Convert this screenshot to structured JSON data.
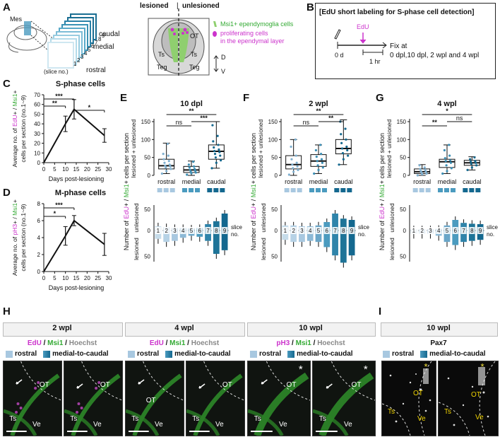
{
  "panels": {
    "A": "A",
    "B": "B",
    "C": "C",
    "D": "D",
    "E": "E",
    "F": "F",
    "G": "G",
    "H": "H",
    "I": "I"
  },
  "panel_a": {
    "mes": "Mes",
    "caudal": "caudal",
    "medial": "medial",
    "rostral": "rostral",
    "slice_no": "(slice no.)",
    "slice_numbers": [
      "1",
      "2",
      "3",
      "4",
      "5",
      "6",
      "7",
      "8",
      "9"
    ],
    "lesioned": "lesioned",
    "unlesioned": "unlesioned",
    "ot": "OT",
    "ts": "Ts",
    "teg": "Teg",
    "legend_msi1": "Msi1+ ependymoglia cells",
    "legend_prolif_1": "proliferating cells",
    "legend_prolif_2": "in the ependymal layer",
    "d": "D",
    "v": "V"
  },
  "panel_b": {
    "title": "[EdU short labeling for S-phase cell detection]",
    "edu": "EdU",
    "fix_1": "Fix at",
    "fix_2": "0 dpl,10 dpl, 2 wpl and 4 wpl",
    "zero_d": "0 d",
    "one_hr": "1 hr"
  },
  "colors": {
    "magenta": "#cc33cc",
    "green": "#33aa33",
    "light_blue": "#a8c8e0",
    "mid_blue": "#4b9bbf",
    "dark_blue": "#14688f"
  },
  "line_plots": {
    "ylabel_1": "Average no. of ",
    "ylabel_2": "cells per section (no.1~9)",
    "slash": " / ",
    "plus": "+",
    "msi1": "Msi1",
    "edu": "EdU",
    "ph3": "pH3",
    "xlabel": "Days post-lesioning"
  },
  "box_plots": {
    "ylabel_a": "Number of ",
    "ylabel_b": " cells per section",
    "edu": "EdU",
    "msi1": "Msi1",
    "plus": "+",
    "slash": " / ",
    "sub_top": "lesioned + unlesioned",
    "sub_lesioned": "lesioned",
    "sub_unlesioned": "unlesioned",
    "slice_no": "slice no."
  },
  "chart_data": [
    {
      "id": "C",
      "type": "line",
      "title": "S-phase cells",
      "xlabel": "Days post-lesioning",
      "ylabel": "Average no. of EdU+ / Msi1+ cells per section (no.1~9)",
      "x": [
        0,
        10,
        14,
        28
      ],
      "y": [
        0,
        40,
        55,
        28
      ],
      "yerr": [
        0,
        8,
        10,
        7
      ],
      "xlim": [
        0,
        30
      ],
      "ylim": [
        0,
        70
      ],
      "xticks": [
        "0",
        "5",
        "10",
        "15",
        "20",
        "25",
        "30"
      ],
      "yticks": [
        "0",
        "10",
        "20",
        "30",
        "40",
        "50",
        "60",
        "70"
      ],
      "significance": [
        "***",
        "**",
        "*"
      ]
    },
    {
      "id": "D",
      "type": "line",
      "title": "M-phase cells",
      "xlabel": "Days post-lesioning",
      "ylabel": "Average no. of pH3+ / Msi1+ cells per section (no.1~9)",
      "x": [
        0,
        10,
        14,
        28
      ],
      "y": [
        0,
        4.2,
        6,
        3.2
      ],
      "yerr": [
        0,
        1.1,
        0.6,
        1.3
      ],
      "xlim": [
        0,
        30
      ],
      "ylim": [
        0,
        8
      ],
      "xticks": [
        "0",
        "5",
        "10",
        "15",
        "20",
        "25",
        "30"
      ],
      "yticks": [
        "0",
        "2",
        "4",
        "6",
        "8"
      ],
      "significance": [
        "***",
        "*"
      ]
    },
    {
      "id": "E",
      "type": "box",
      "title": "10 dpl",
      "categories": [
        "rostral",
        "medial",
        "caudal"
      ],
      "ylim": [
        0,
        150
      ],
      "yticks": [
        "0",
        "50",
        "100",
        "150"
      ],
      "boxes": [
        {
          "min": 5,
          "q1": 18,
          "median": 27,
          "q3": 45,
          "max": 90
        },
        {
          "min": 0,
          "q1": 8,
          "median": 15,
          "q3": 25,
          "max": 40
        },
        {
          "min": 20,
          "q1": 45,
          "median": 67,
          "q3": 85,
          "max": 150
        }
      ],
      "points": [
        [
          5,
          12,
          18,
          22,
          25,
          27,
          30,
          35,
          40,
          45,
          55,
          60,
          88
        ],
        [
          2,
          6,
          8,
          10,
          13,
          15,
          18,
          22,
          25,
          30,
          38
        ],
        [
          20,
          35,
          42,
          50,
          55,
          60,
          65,
          68,
          72,
          78,
          85,
          95,
          110,
          140
        ]
      ],
      "significance": [
        "**",
        "ns",
        "***"
      ],
      "bar": {
        "slices": [
          "1",
          "2",
          "3",
          "4",
          "5",
          "6",
          "7",
          "8",
          "9"
        ],
        "unlesioned": [
          10,
          8,
          6,
          6,
          5,
          6,
          15,
          22,
          40
        ],
        "lesioned": [
          16,
          22,
          20,
          14,
          10,
          12,
          20,
          45,
          38
        ]
      },
      "bar_yticks_top": [
        "0",
        "50"
      ],
      "bar_yticks_bottom": [
        "50"
      ]
    },
    {
      "id": "F",
      "type": "box",
      "title": "2 wpl",
      "categories": [
        "rostral",
        "medial",
        "caudal"
      ],
      "ylim": [
        0,
        150
      ],
      "yticks": [
        "0",
        "50",
        "100",
        "150"
      ],
      "boxes": [
        {
          "min": 0,
          "q1": 18,
          "median": 30,
          "q3": 55,
          "max": 100
        },
        {
          "min": 5,
          "q1": 25,
          "median": 40,
          "q3": 58,
          "max": 85
        },
        {
          "min": 30,
          "q1": 60,
          "median": 75,
          "q3": 100,
          "max": 155
        }
      ],
      "points": [
        [
          2,
          10,
          15,
          20,
          25,
          30,
          35,
          45,
          55,
          80,
          100
        ],
        [
          5,
          15,
          22,
          28,
          35,
          40,
          45,
          52,
          60,
          70,
          85
        ],
        [
          30,
          45,
          55,
          62,
          70,
          75,
          80,
          90,
          100,
          115,
          130,
          150
        ]
      ],
      "significance": [
        "**",
        "ns",
        "**"
      ],
      "bar": {
        "slices": [
          "1",
          "2",
          "3",
          "4",
          "5",
          "6",
          "7",
          "8",
          "9"
        ],
        "unlesioned": [
          12,
          12,
          10,
          10,
          12,
          20,
          40,
          28,
          25
        ],
        "lesioned": [
          18,
          22,
          22,
          20,
          22,
          32,
          48,
          62,
          48
        ]
      },
      "bar_yticks_top": [
        "0",
        "50"
      ],
      "bar_yticks_bottom": [
        "50"
      ]
    },
    {
      "id": "G",
      "type": "box",
      "title": "4 wpl",
      "categories": [
        "rostral",
        "medial",
        "caudal"
      ],
      "ylim": [
        0,
        150
      ],
      "yticks": [
        "0",
        "50",
        "100",
        "150"
      ],
      "boxes": [
        {
          "min": 0,
          "q1": 5,
          "median": 10,
          "q3": 18,
          "max": 30
        },
        {
          "min": 5,
          "q1": 22,
          "median": 38,
          "q3": 45,
          "max": 85
        },
        {
          "min": 15,
          "q1": 28,
          "median": 35,
          "q3": 42,
          "max": 52
        }
      ],
      "points": [
        [
          0,
          3,
          5,
          8,
          10,
          12,
          15,
          18,
          22,
          28
        ],
        [
          5,
          12,
          20,
          28,
          35,
          40,
          42,
          48,
          55,
          70,
          85
        ],
        [
          15,
          22,
          28,
          32,
          35,
          38,
          40,
          45,
          50
        ]
      ],
      "significance": [
        "*",
        "**",
        "ns"
      ],
      "bar": {
        "slices": [
          "1",
          "2",
          "3",
          "4",
          "5",
          "6",
          "7",
          "8",
          "9"
        ],
        "unlesioned": [
          3,
          3,
          3,
          4,
          12,
          25,
          18,
          16,
          15
        ],
        "lesioned": [
          6,
          6,
          6,
          10,
          22,
          28,
          22,
          20,
          18
        ]
      },
      "bar_yticks_top": [
        "0",
        "50"
      ],
      "bar_yticks_bottom": [
        "50"
      ]
    }
  ],
  "panel_h": {
    "groups": [
      {
        "title": "2 wpl",
        "stain": [
          "EdU",
          "Msi1",
          "Hoechst"
        ]
      },
      {
        "title": "4 wpl",
        "stain": [
          "EdU",
          "Msi1",
          "Hoechst"
        ]
      },
      {
        "title": "10 wpl",
        "stain": [
          "pH3",
          "Msi1",
          "Hoechst"
        ]
      }
    ],
    "rostral": "rostral",
    "m2c": "medial-to-caudal",
    "slash": " / ",
    "labels": {
      "ot": "OT",
      "ts": "Ts",
      "ve": "Ve"
    }
  },
  "panel_i": {
    "title": "10 wpl",
    "stain": "Pax7",
    "rostral": "rostral",
    "m2c": "medial-to-caudal",
    "ot": "OT",
    "ts": "Ts",
    "ve": "Ve"
  }
}
